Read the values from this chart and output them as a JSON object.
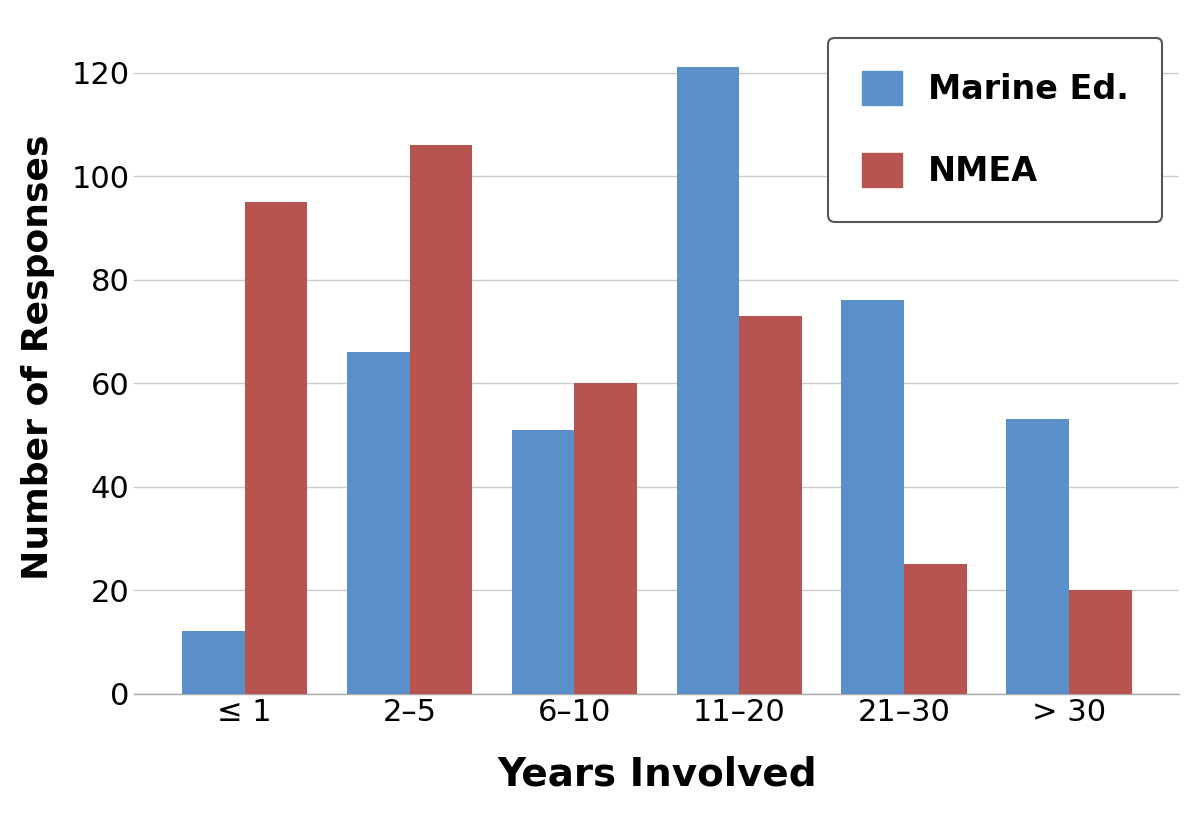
{
  "categories": [
    "≤ 1",
    "2–5",
    "6–10",
    "11–20",
    "21–30",
    "> 30"
  ],
  "marine_ed": [
    12,
    66,
    51,
    121,
    76,
    53
  ],
  "nmea": [
    95,
    106,
    60,
    73,
    25,
    20
  ],
  "marine_color": "#5b8fc9",
  "nmea_color": "#b85450",
  "xlabel": "Years Involved",
  "ylabel": "Number of Responses",
  "ylim": [
    0,
    130
  ],
  "yticks": [
    0,
    20,
    40,
    60,
    80,
    100,
    120
  ],
  "legend_labels": [
    "Marine Ed.",
    "NMEA"
  ],
  "bar_width": 0.38,
  "xlabel_fontsize": 28,
  "ylabel_fontsize": 26,
  "tick_fontsize": 22,
  "legend_fontsize": 24,
  "background_color": "#ffffff",
  "grid_color": "#cccccc"
}
